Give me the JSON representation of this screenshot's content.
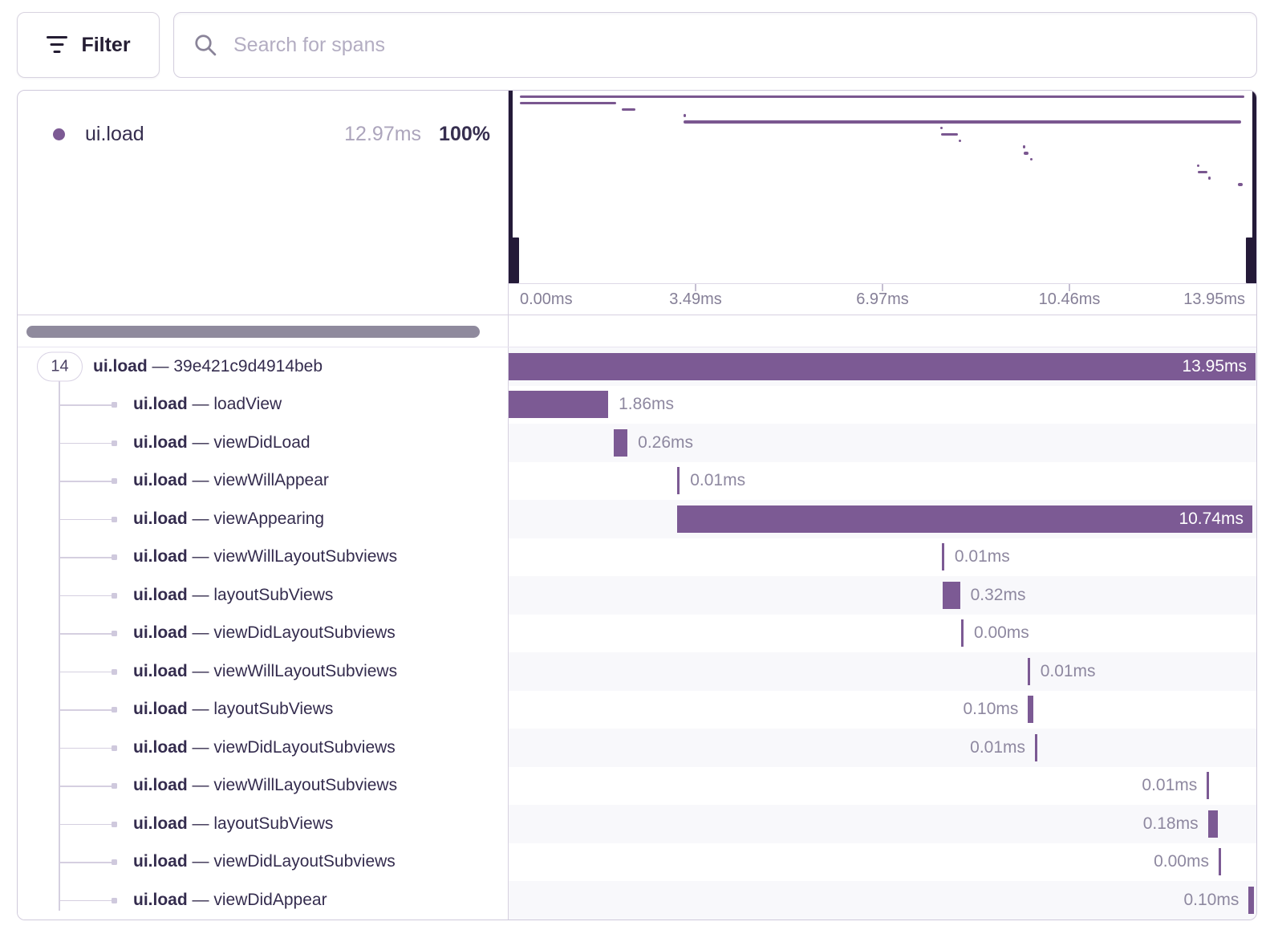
{
  "toolbar": {
    "filter_label": "Filter",
    "search_placeholder": "Search for spans"
  },
  "legend": {
    "op": "ui.load",
    "duration": "12.97ms",
    "percent": "100%"
  },
  "axis": {
    "ticks": [
      "0.00ms",
      "3.49ms",
      "6.97ms",
      "10.46ms",
      "13.95ms"
    ]
  },
  "trace": {
    "total_ms": 13.95,
    "badge_count": "14",
    "separator": "—",
    "root": {
      "op": "ui.load",
      "name": "39e421c9d4914beb",
      "start_ms": 0,
      "duration_ms": 13.95,
      "duration_label": "13.95ms",
      "label_pos": "inside"
    },
    "spans": [
      {
        "op": "ui.load",
        "name": "loadView",
        "start_ms": 0.0,
        "duration_ms": 1.86,
        "duration_label": "1.86ms",
        "label_pos": "right"
      },
      {
        "op": "ui.load",
        "name": "viewDidLoad",
        "start_ms": 1.96,
        "duration_ms": 0.26,
        "duration_label": "0.26ms",
        "label_pos": "right"
      },
      {
        "op": "ui.load",
        "name": "viewWillAppear",
        "start_ms": 3.15,
        "duration_ms": 0.01,
        "duration_label": "0.01ms",
        "label_pos": "right"
      },
      {
        "op": "ui.load",
        "name": "viewAppearing",
        "start_ms": 3.15,
        "duration_ms": 10.74,
        "duration_label": "10.74ms",
        "label_pos": "inside"
      },
      {
        "op": "ui.load",
        "name": "viewWillLayoutSubviews",
        "start_ms": 8.09,
        "duration_ms": 0.01,
        "duration_label": "0.01ms",
        "label_pos": "right"
      },
      {
        "op": "ui.load",
        "name": "layoutSubViews",
        "start_ms": 8.11,
        "duration_ms": 0.32,
        "duration_label": "0.32ms",
        "label_pos": "right"
      },
      {
        "op": "ui.load",
        "name": "viewDidLayoutSubviews",
        "start_ms": 8.45,
        "duration_ms": 0.0,
        "duration_label": "0.00ms",
        "label_pos": "right"
      },
      {
        "op": "ui.load",
        "name": "viewWillLayoutSubviews",
        "start_ms": 9.69,
        "duration_ms": 0.01,
        "duration_label": "0.01ms",
        "label_pos": "right"
      },
      {
        "op": "ui.load",
        "name": "layoutSubViews",
        "start_ms": 9.7,
        "duration_ms": 0.1,
        "duration_label": "0.10ms",
        "label_pos": "left"
      },
      {
        "op": "ui.load",
        "name": "viewDidLayoutSubviews",
        "start_ms": 9.83,
        "duration_ms": 0.01,
        "duration_label": "0.01ms",
        "label_pos": "left"
      },
      {
        "op": "ui.load",
        "name": "viewWillLayoutSubviews",
        "start_ms": 13.04,
        "duration_ms": 0.01,
        "duration_label": "0.01ms",
        "label_pos": "left"
      },
      {
        "op": "ui.load",
        "name": "layoutSubViews",
        "start_ms": 13.06,
        "duration_ms": 0.18,
        "duration_label": "0.18ms",
        "label_pos": "left"
      },
      {
        "op": "ui.load",
        "name": "viewDidLayoutSubviews",
        "start_ms": 13.26,
        "duration_ms": 0.0,
        "duration_label": "0.00ms",
        "label_pos": "left"
      },
      {
        "op": "ui.load",
        "name": "viewDidAppear",
        "start_ms": 13.82,
        "duration_ms": 0.1,
        "duration_label": "0.10ms",
        "label_pos": "left"
      }
    ]
  },
  "colors": {
    "bar": "#7c5a94",
    "minimap_bar": "#7a5790",
    "handle": "#241a38",
    "alt_row": "#f8f8fb",
    "duration_text": "#8e88a0"
  }
}
